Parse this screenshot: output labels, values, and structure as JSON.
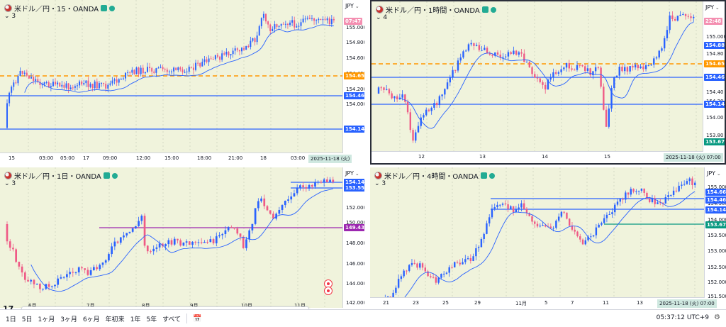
{
  "colors": {
    "up": "#2962ff",
    "down": "#ef5a86",
    "hline": "#2962ff",
    "dash": "#ff9800",
    "purple": "#9c27b0",
    "ma": "#2962ff",
    "green": "#089981"
  },
  "icons": {
    "flag": "us-jp-flag-icon",
    "settings": "gear-icon",
    "calendar": "calendar-icon",
    "logo": "tradingview-logo-icon"
  },
  "panes": [
    {
      "id": "p15",
      "title": "米ドル／円・15・OANDA",
      "count": "3",
      "currency": "JPY",
      "price_ticks": [
        "155.000",
        "154.800",
        "154.600",
        "154.400",
        "154.200",
        "154.000"
      ],
      "labels": [
        {
          "text": "07:47",
          "kind": "pink"
        },
        {
          "text": "154.656",
          "kind": "orange"
        },
        {
          "text": "154.463",
          "kind": "blue"
        },
        {
          "text": "154.147",
          "kind": "blue"
        }
      ],
      "time_ticks": [
        "15",
        "03:00",
        "05:00",
        "17",
        "09:00",
        "12:00",
        "15:00",
        "18:00",
        "21:00",
        "18",
        "03:00"
      ],
      "date_badge": "2025-11-18 (火)"
    },
    {
      "id": "p1h",
      "title": "米ドル／円・1時間・OANDA",
      "count": "4",
      "currency": "JPY",
      "price_ticks": [
        "155.000",
        "154.80",
        "154.40",
        "154.20",
        "154.00",
        "153.80",
        "153.60"
      ],
      "labels": [
        {
          "text": "22:48",
          "kind": "pink"
        },
        {
          "text": "154.88",
          "kind": "blue"
        },
        {
          "text": "154.65",
          "kind": "orange"
        },
        {
          "text": "154.46",
          "kind": "blue"
        },
        {
          "text": "154.14",
          "kind": "blue"
        },
        {
          "text": "153.67",
          "kind": "green"
        }
      ],
      "time_ticks": [
        "12",
        "13",
        "14",
        "15"
      ],
      "date_badge": "2025-11-18 (火)",
      "date_time": "07:00"
    },
    {
      "id": "p1d",
      "title": "米ドル／円・1日・OANDA",
      "count": "3",
      "currency": "JPY",
      "price_ticks": [
        "152.000",
        "150.000",
        "148.000",
        "146.000",
        "144.000",
        "142.000"
      ],
      "labels": [
        {
          "text": "154.147",
          "kind": "blue"
        },
        {
          "text": "153.555",
          "kind": "blue"
        },
        {
          "text": "149.433",
          "kind": "purple"
        }
      ],
      "time_ticks": [
        "6月",
        "7月",
        "8月",
        "9月",
        "10月",
        "11月"
      ]
    },
    {
      "id": "p4h",
      "title": "米ドル／円・4時間・OANDA",
      "count": "3",
      "currency": "JPY",
      "price_ticks": [
        "155.000",
        "154.500",
        "154.000",
        "153.500",
        "153.000",
        "152.500",
        "152.000",
        "151.500"
      ],
      "labels": [
        {
          "text": "154.66",
          "kind": "blue"
        },
        {
          "text": "154.46",
          "kind": "blue"
        },
        {
          "text": "154.14",
          "kind": "blue"
        },
        {
          "text": "153.67",
          "kind": "green"
        }
      ],
      "time_ticks": [
        "21",
        "23",
        "25",
        "29",
        "11月",
        "5",
        "7",
        "11",
        "13"
      ],
      "date_badge": "2025-11-18 (火)",
      "date_time": "07:00"
    }
  ],
  "toolbar": {
    "tools": [
      "cross-icon",
      "horizontal-ray-icon",
      "vertical-line-icon",
      "rectangle-note-icon",
      "path-icon",
      "trend-line-icon",
      "ray-icon",
      "box-icon",
      "brush-icon",
      "pen-icon",
      "eraser-icon",
      "arrow-down-icon",
      "arrow-up-icon",
      "list-icon",
      "fib-icon",
      "text-icon",
      "table-icon",
      "frame-icon",
      "paint-icon"
    ]
  },
  "bottom": {
    "ranges": [
      "1日",
      "5日",
      "1ヶ月",
      "3ヶ月",
      "6ヶ月",
      "年初来",
      "1年",
      "5年",
      "すべて"
    ],
    "clock": "05:37:12 UTC+9"
  }
}
